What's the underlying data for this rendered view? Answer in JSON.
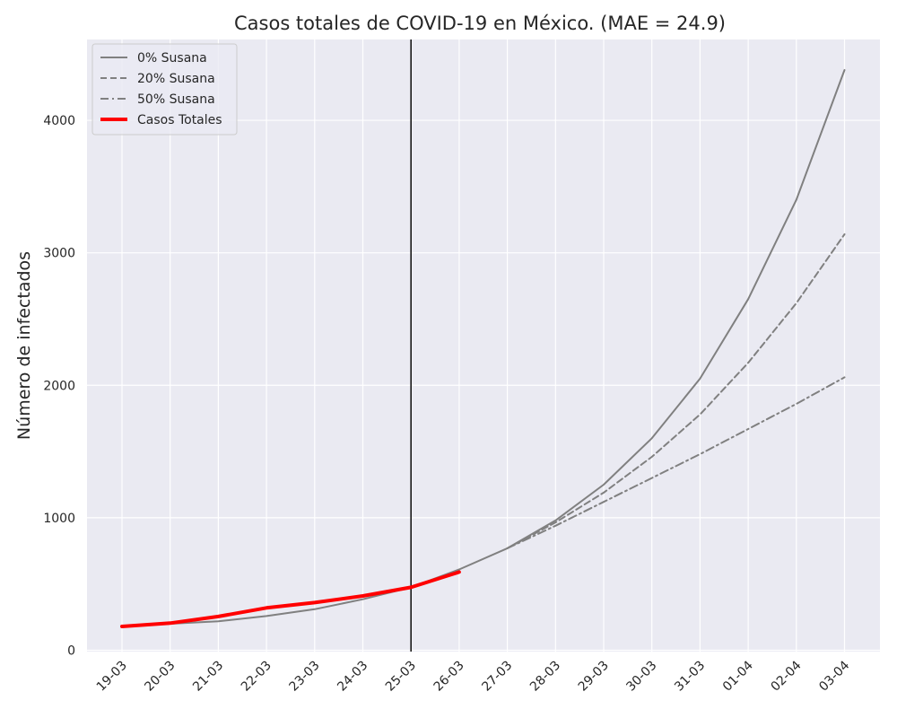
{
  "chart_data": {
    "type": "line",
    "title": "Casos totales de COVID-19 en México. (MAE = 24.9)",
    "xlabel": "",
    "ylabel": "Número de infectados",
    "categories": [
      "19-03",
      "20-03",
      "21-03",
      "22-03",
      "23-03",
      "24-03",
      "25-03",
      "26-03",
      "27-03",
      "28-03",
      "29-03",
      "30-03",
      "31-03",
      "01-04",
      "02-04",
      "03-04"
    ],
    "ylim": [
      -10,
      4610
    ],
    "yticks": [
      0,
      1000,
      2000,
      3000,
      4000
    ],
    "grid": true,
    "legend_position": "top-left",
    "vline_category": "25-03",
    "series": [
      {
        "name": "0% Susana",
        "style": "solid",
        "color": "#808080",
        "values": [
          180,
          200,
          218,
          258,
          310,
          385,
          475,
          610,
          770,
          980,
          1250,
          1600,
          2050,
          2650,
          3400,
          4380
        ]
      },
      {
        "name": "20% Susana",
        "style": "dashed",
        "color": "#808080",
        "values": [
          null,
          null,
          null,
          null,
          null,
          null,
          null,
          null,
          770,
          965,
          1190,
          1460,
          1780,
          2170,
          2620,
          3140
        ]
      },
      {
        "name": "50% Susana",
        "style": "dashdot",
        "color": "#808080",
        "values": [
          null,
          null,
          null,
          null,
          null,
          null,
          null,
          null,
          770,
          940,
          1120,
          1300,
          1480,
          1670,
          1860,
          2060
        ]
      },
      {
        "name": "Casos Totales",
        "style": "solid-thick",
        "color": "#ff0000",
        "values": [
          180,
          205,
          255,
          320,
          360,
          410,
          475,
          590,
          null,
          null,
          null,
          null,
          null,
          null,
          null,
          null
        ]
      }
    ]
  }
}
